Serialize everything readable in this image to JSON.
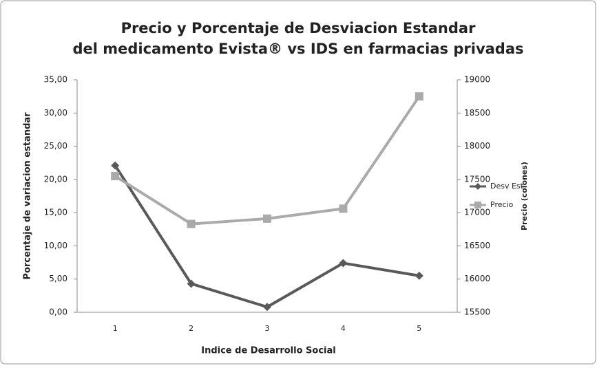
{
  "chart_data": {
    "type": "line",
    "title": [
      "Precio y Porcentaje de Desviacion Estandar",
      "del medicamento Evista® vs IDS en farmacias privadas"
    ],
    "xlabel": "Indice de Desarrollo Social",
    "ylabel": "Porcentaje de variacion estandar",
    "y2label": "Precio (colones)",
    "categories": [
      "1",
      "2",
      "3",
      "4",
      "5"
    ],
    "series": [
      {
        "name": "Desv Est",
        "color": "#595959",
        "marker": "diamond",
        "values": [
          22.1,
          4.3,
          0.8,
          7.4,
          5.5
        ]
      },
      {
        "name": "Precio",
        "color": "#aaaaaa",
        "marker": "square",
        "axis": "y2",
        "values": [
          17550,
          16830,
          16910,
          17060,
          18750
        ]
      }
    ],
    "ylim": [
      0,
      35
    ],
    "yticks": [
      {
        "value": 0,
        "label": "0,00"
      },
      {
        "value": 5,
        "label": "5,00"
      },
      {
        "value": 10,
        "label": "10,00"
      },
      {
        "value": 15,
        "label": "15,00"
      },
      {
        "value": 20,
        "label": "20,00"
      },
      {
        "value": 25,
        "label": "25,00"
      },
      {
        "value": 30,
        "label": "30,00"
      },
      {
        "value": 35,
        "label": "35,00"
      }
    ],
    "y2lim": [
      15500,
      19000
    ],
    "y2ticks": [
      15500,
      16000,
      16500,
      17000,
      17500,
      18000,
      18500,
      19000
    ],
    "grid": false,
    "legend": "right"
  }
}
